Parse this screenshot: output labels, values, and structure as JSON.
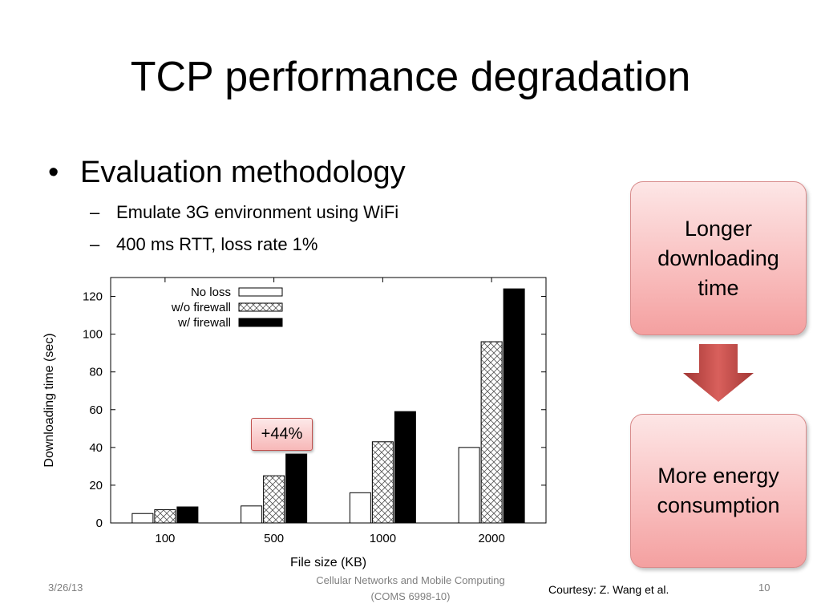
{
  "slide": {
    "title": "TCP performance degradation",
    "bullet": "Evaluation methodology",
    "bullet_marker": "•",
    "sub_marker": "–",
    "sub_bullets": [
      "Emulate 3G environment using WiFi",
      "400 ms RTT, loss rate 1%"
    ]
  },
  "callouts": {
    "top": [
      "Longer",
      "downloading",
      "time"
    ],
    "bottom": [
      "More energy",
      "consumption"
    ]
  },
  "annotation": "+44%",
  "footer": {
    "date": "3/26/13",
    "course_line1": "Cellular Networks and Mobile Computing",
    "course_line2": "(COMS 6998-10)",
    "courtesy": "Courtesy: Z. Wang et al.",
    "page": "10"
  },
  "colors": {
    "callout_border": "#d88b8b",
    "arrow": "#c0504d"
  },
  "chart_data": {
    "type": "bar",
    "categories": [
      "100",
      "500",
      "1000",
      "2000"
    ],
    "series": [
      {
        "name": "No loss",
        "values": [
          5,
          9,
          16,
          40
        ],
        "pattern": "white"
      },
      {
        "name": "w/o firewall",
        "values": [
          7,
          25,
          43,
          96
        ],
        "pattern": "crosshatch"
      },
      {
        "name": "w/ firewall",
        "values": [
          8.5,
          36.5,
          59,
          124
        ],
        "pattern": "black"
      }
    ],
    "xlabel": "File size (KB)",
    "ylabel": "Downloading time (sec)",
    "ylim": [
      0,
      130
    ],
    "yticks": [
      0,
      20,
      40,
      60,
      80,
      100,
      120
    ],
    "legend": "top-left",
    "grid": false
  }
}
